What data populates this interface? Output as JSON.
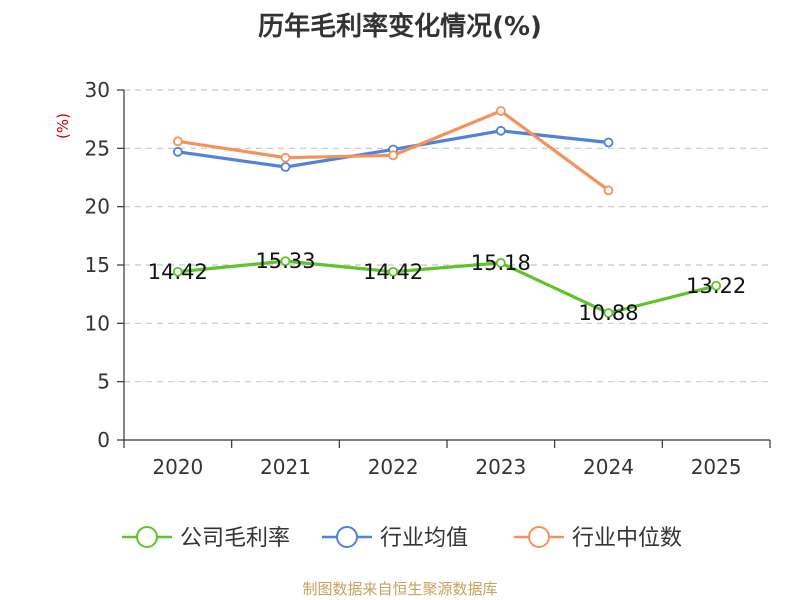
{
  "chart_data": {
    "type": "line",
    "title": "历年毛利率变化情况(%)",
    "ylabel": "(%)",
    "xlabel": "",
    "categories": [
      "2020",
      "2021",
      "2022",
      "2023",
      "2024",
      "2025"
    ],
    "ylim": [
      0,
      30
    ],
    "yticks": [
      0,
      5,
      10,
      15,
      20,
      25,
      30
    ],
    "grid": true,
    "legend_position": "bottom",
    "series": [
      {
        "name": "公司毛利率",
        "color": "#5fc32e",
        "values": [
          14.42,
          15.33,
          14.42,
          15.18,
          10.88,
          13.22
        ],
        "labels": [
          "14.42",
          "15.33",
          "14.42",
          "15.18",
          "10.88",
          "13.22"
        ]
      },
      {
        "name": "行业均值",
        "color": "#4f82d8",
        "values": [
          24.7,
          23.4,
          24.9,
          26.5,
          25.5,
          null
        ]
      },
      {
        "name": "行业中位数",
        "color": "#f4925c",
        "values": [
          25.6,
          24.2,
          24.4,
          28.2,
          21.4,
          null
        ]
      }
    ]
  },
  "footer": "制图数据来自恒生聚源数据库"
}
